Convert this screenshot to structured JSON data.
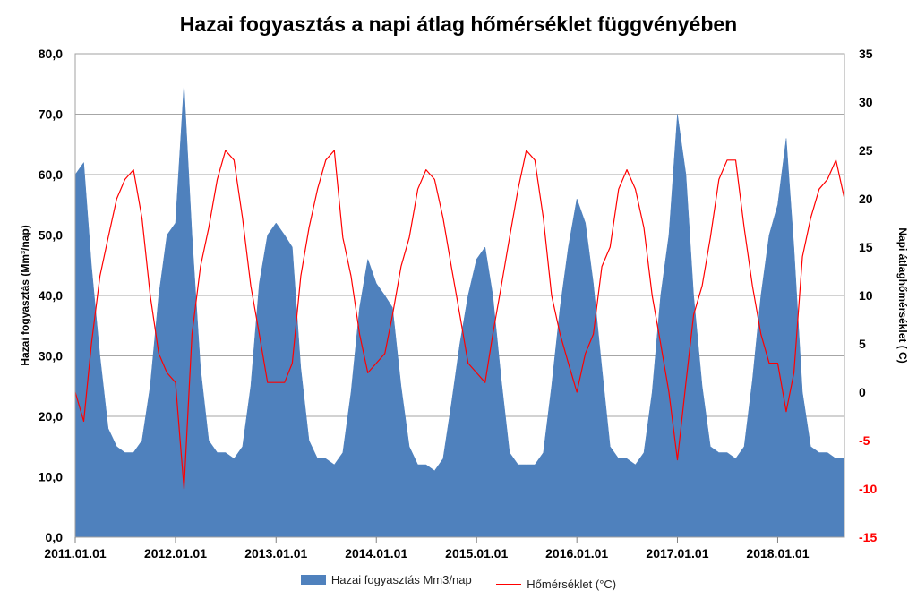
{
  "title": "Hazai fogyasztás a napi átlag hőmérséklet függvényében",
  "chart_data": {
    "type": "area",
    "title": "Hazai fogyasztás a napi átlag hőmérséklet függvényében",
    "ylabel": "Hazai fogyasztás (Mm³/nap)",
    "y2label": "Napi átlaghőmérséklet ( C)",
    "ylim": [
      0,
      80
    ],
    "y2lim": [
      -15,
      35
    ],
    "y_ticks": [
      "0,0",
      "10,0",
      "20,0",
      "30,0",
      "40,0",
      "50,0",
      "60,0",
      "70,0",
      "80,0"
    ],
    "y2_ticks": [
      "-15",
      "-10",
      "-5",
      "0",
      "5",
      "10",
      "15",
      "20",
      "25",
      "30",
      "35"
    ],
    "x_ticks": [
      "2011.01.01",
      "2012.01.01",
      "2013.01.01",
      "2014.01.01",
      "2015.01.01",
      "2016.01.01",
      "2017.01.01",
      "2018.01.01"
    ],
    "x_range": [
      "2011.01.01",
      "2018.09.01"
    ],
    "grid": "horizontal",
    "legend_position": "bottom",
    "colors": {
      "consumption": "#4f81bd",
      "temperature": "#ff0000",
      "y2_negative": "#ff0000"
    },
    "series": [
      {
        "name": "Hazai fogyasztás Mm3/nap",
        "type": "area",
        "axis": "left",
        "x": [
          "2011.01.01",
          "2011.02.01",
          "2011.03.01",
          "2011.04.01",
          "2011.05.01",
          "2011.06.01",
          "2011.07.01",
          "2011.08.01",
          "2011.09.01",
          "2011.10.01",
          "2011.11.01",
          "2011.12.01",
          "2012.01.01",
          "2012.02.01",
          "2012.03.01",
          "2012.04.01",
          "2012.05.01",
          "2012.06.01",
          "2012.07.01",
          "2012.08.01",
          "2012.09.01",
          "2012.10.01",
          "2012.11.01",
          "2012.12.01",
          "2013.01.01",
          "2013.02.01",
          "2013.03.01",
          "2013.04.01",
          "2013.05.01",
          "2013.06.01",
          "2013.07.01",
          "2013.08.01",
          "2013.09.01",
          "2013.10.01",
          "2013.11.01",
          "2013.12.01",
          "2014.01.01",
          "2014.02.01",
          "2014.03.01",
          "2014.04.01",
          "2014.05.01",
          "2014.06.01",
          "2014.07.01",
          "2014.08.01",
          "2014.09.01",
          "2014.10.01",
          "2014.11.01",
          "2014.12.01",
          "2015.01.01",
          "2015.02.01",
          "2015.03.01",
          "2015.04.01",
          "2015.05.01",
          "2015.06.01",
          "2015.07.01",
          "2015.08.01",
          "2015.09.01",
          "2015.10.01",
          "2015.11.01",
          "2015.12.01",
          "2016.01.01",
          "2016.02.01",
          "2016.03.01",
          "2016.04.01",
          "2016.05.01",
          "2016.06.01",
          "2016.07.01",
          "2016.08.01",
          "2016.09.01",
          "2016.10.01",
          "2016.11.01",
          "2016.12.01",
          "2017.01.01",
          "2017.02.01",
          "2017.03.01",
          "2017.04.01",
          "2017.05.01",
          "2017.06.01",
          "2017.07.01",
          "2017.08.01",
          "2017.09.01",
          "2017.10.01",
          "2017.11.01",
          "2017.12.01",
          "2018.01.01",
          "2018.02.01",
          "2018.03.01",
          "2018.04.01",
          "2018.05.01",
          "2018.06.01",
          "2018.07.01",
          "2018.08.01",
          "2018.09.01"
        ],
        "values": [
          60,
          62,
          45,
          30,
          18,
          15,
          14,
          14,
          16,
          25,
          40,
          50,
          52,
          75,
          50,
          28,
          16,
          14,
          14,
          13,
          15,
          25,
          42,
          50,
          52,
          50,
          48,
          28,
          16,
          13,
          13,
          12,
          14,
          24,
          38,
          46,
          42,
          40,
          38,
          25,
          15,
          12,
          12,
          11,
          13,
          22,
          32,
          40,
          46,
          48,
          40,
          26,
          14,
          12,
          12,
          12,
          14,
          25,
          38,
          48,
          56,
          52,
          42,
          28,
          15,
          13,
          13,
          12,
          14,
          24,
          40,
          50,
          70,
          60,
          40,
          25,
          15,
          14,
          14,
          13,
          15,
          26,
          40,
          50,
          55,
          66,
          48,
          24,
          15,
          14,
          14,
          13,
          13
        ]
      },
      {
        "name": "Hőmérséklet (°C)",
        "type": "line",
        "axis": "right",
        "x": [
          "2011.01.01",
          "2011.02.01",
          "2011.03.01",
          "2011.04.01",
          "2011.05.01",
          "2011.06.01",
          "2011.07.01",
          "2011.08.01",
          "2011.09.01",
          "2011.10.01",
          "2011.11.01",
          "2011.12.01",
          "2012.01.01",
          "2012.02.01",
          "2012.03.01",
          "2012.04.01",
          "2012.05.01",
          "2012.06.01",
          "2012.07.01",
          "2012.08.01",
          "2012.09.01",
          "2012.10.01",
          "2012.11.01",
          "2012.12.01",
          "2013.01.01",
          "2013.02.01",
          "2013.03.01",
          "2013.04.01",
          "2013.05.01",
          "2013.06.01",
          "2013.07.01",
          "2013.08.01",
          "2013.09.01",
          "2013.10.01",
          "2013.11.01",
          "2013.12.01",
          "2014.01.01",
          "2014.02.01",
          "2014.03.01",
          "2014.04.01",
          "2014.05.01",
          "2014.06.01",
          "2014.07.01",
          "2014.08.01",
          "2014.09.01",
          "2014.10.01",
          "2014.11.01",
          "2014.12.01",
          "2015.01.01",
          "2015.02.01",
          "2015.03.01",
          "2015.04.01",
          "2015.05.01",
          "2015.06.01",
          "2015.07.01",
          "2015.08.01",
          "2015.09.01",
          "2015.10.01",
          "2015.11.01",
          "2015.12.01",
          "2016.01.01",
          "2016.02.01",
          "2016.03.01",
          "2016.04.01",
          "2016.05.01",
          "2016.06.01",
          "2016.07.01",
          "2016.08.01",
          "2016.09.01",
          "2016.10.01",
          "2016.11.01",
          "2016.12.01",
          "2017.01.01",
          "2017.02.01",
          "2017.03.01",
          "2017.04.01",
          "2017.05.01",
          "2017.06.01",
          "2017.07.01",
          "2017.08.01",
          "2017.09.01",
          "2017.10.01",
          "2017.11.01",
          "2017.12.01",
          "2018.01.01",
          "2018.02.01",
          "2018.03.01",
          "2018.04.01",
          "2018.05.01",
          "2018.06.01",
          "2018.07.01",
          "2018.08.01",
          "2018.09.01"
        ],
        "values": [
          0,
          -3,
          5,
          12,
          16,
          20,
          22,
          23,
          18,
          10,
          4,
          2,
          1,
          -10,
          6,
          13,
          17,
          22,
          25,
          24,
          18,
          11,
          6,
          1,
          1,
          1,
          3,
          12,
          17,
          21,
          24,
          25,
          16,
          12,
          6,
          2,
          3,
          4,
          8,
          13,
          16,
          21,
          23,
          22,
          18,
          13,
          8,
          3,
          2,
          1,
          6,
          11,
          16,
          21,
          25,
          24,
          18,
          10,
          6,
          3,
          0,
          4,
          6,
          13,
          15,
          21,
          23,
          21,
          17,
          10,
          5,
          0,
          -7,
          1,
          8,
          11,
          16,
          22,
          24,
          24,
          17,
          11,
          6,
          3,
          3,
          -2,
          2,
          14,
          18,
          21,
          22,
          24,
          20
        ]
      }
    ]
  }
}
